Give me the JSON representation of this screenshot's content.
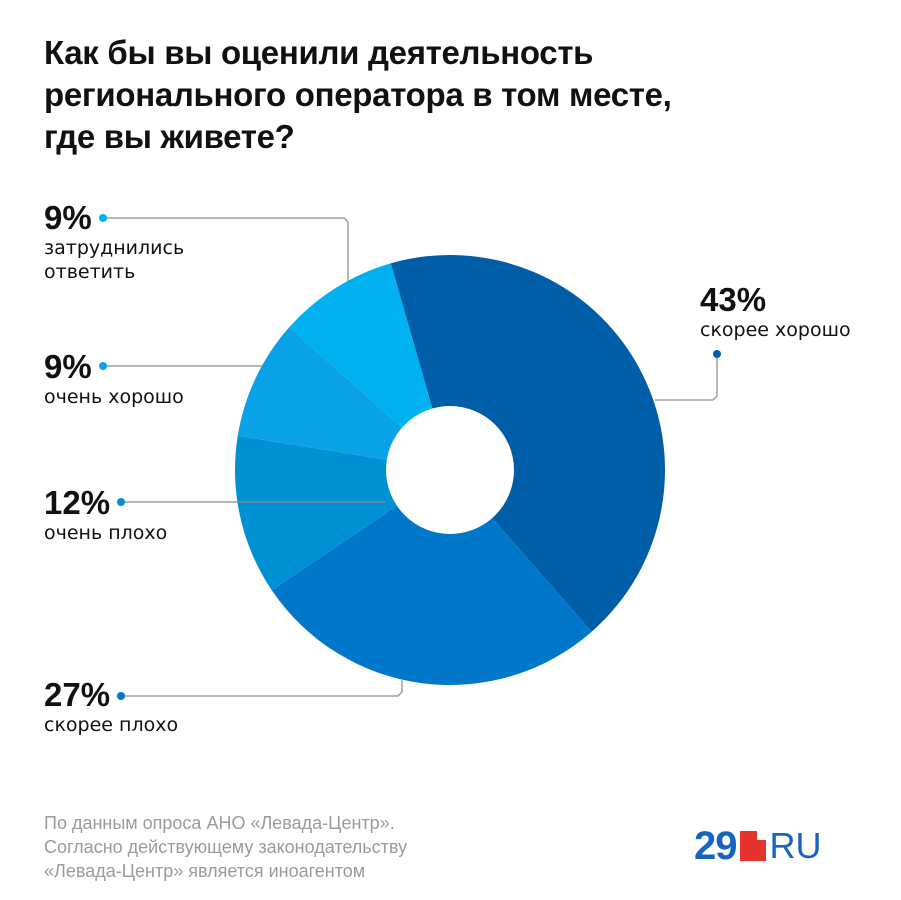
{
  "title_lines": [
    "Как бы вы оценили деятельность",
    "регионального оператора в том месте,",
    "где вы живете?"
  ],
  "chart_data": {
    "type": "pie",
    "title": "Как бы вы оценили деятельность регионального оператора в том месте, где вы живете?",
    "slices": [
      {
        "label": "скорее хорошо",
        "value": 43,
        "value_text": "43%",
        "color": "#005ea8"
      },
      {
        "label": "скорее плохо",
        "value": 27,
        "value_text": "27%",
        "color": "#0077c8"
      },
      {
        "label": "очень плохо",
        "value": 12,
        "value_text": "12%",
        "color": "#0091d5"
      },
      {
        "label": "очень хорошо",
        "value": 9,
        "value_text": "9%",
        "color": "#0aa2e6"
      },
      {
        "label": "затруднились\nответить",
        "value": 9,
        "value_text": "9%",
        "color": "#00b1f0"
      }
    ],
    "donut": true,
    "unit": "%"
  },
  "source_lines": [
    "По данным опроса АНО «Левада-Центр».",
    "Согласно действующему законодательству",
    "«Левада-Центр» является иноагентом"
  ],
  "logo": {
    "number": "29",
    "suffix": "RU",
    "colors": {
      "text": "#1565c0",
      "square": "#e5322d"
    }
  },
  "colors": {
    "leader_line": "#8a8a8a",
    "text": "#111111",
    "source": "#9b9b9b"
  }
}
